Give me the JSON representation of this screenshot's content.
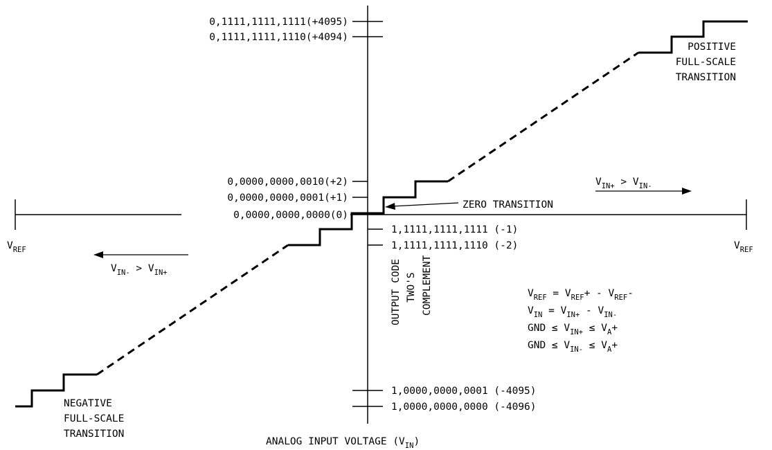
{
  "codes_above": {
    "max": "0,1111,1111,1111(+4095)",
    "max2": "0,1111,1111,1110(+4094)",
    "p2": "0,0000,0000,0010(+2)",
    "p1": "0,0000,0000,0001(+1)",
    "zero": "0,0000,0000,0000(0)"
  },
  "codes_below": {
    "m1": "1,1111,1111,1111 (-1)",
    "m2": "1,1111,1111,1110 (-2)",
    "min2": "1,0000,0000,0001 (-4095)",
    "min": "1,0000,0000,0000 (-4096)"
  },
  "axis_title": {
    "main": "OUTPUT CODE",
    "line2": "TWO'S",
    "line3": "COMPLEMENT"
  },
  "x_axis": {
    "label": "ANALOG INPUT VOLTAGE (V",
    "label_sub": "IN",
    "label_end": ")"
  },
  "vref": {
    "main": "V",
    "sub": "REF"
  },
  "annotations": {
    "positive": [
      "POSITIVE",
      "FULL-SCALE",
      "TRANSITION"
    ],
    "negative": [
      "NEGATIVE",
      "FULL-SCALE",
      "TRANSITION"
    ],
    "zero": "ZERO TRANSITION"
  },
  "direction": {
    "right": {
      "v1": "V",
      "s1": "IN+",
      "op": " > ",
      "v2": "V",
      "s2": "IN-"
    },
    "left": {
      "v1": "V",
      "s1": "IN-",
      "op": " > ",
      "v2": "V",
      "s2": "IN+"
    }
  },
  "equations": {
    "eq1": {
      "a": "V",
      "as": "REF",
      "b": " = V",
      "bs": "REF",
      "c": "+ - V",
      "cs": "REF",
      "d": "-"
    },
    "eq2": {
      "a": "V",
      "as": "IN",
      "b": " = V",
      "bs": "IN+",
      "c": " - V",
      "cs": "IN-"
    },
    "eq3": {
      "a": "GND ≤ V",
      "as": "IN+",
      "b": " ≤ V",
      "bs": "A",
      "c": "+"
    },
    "eq4": {
      "a": "GND ≤ V",
      "as": "IN-",
      "b": " ≤ V",
      "bs": "A",
      "c": "+"
    }
  }
}
